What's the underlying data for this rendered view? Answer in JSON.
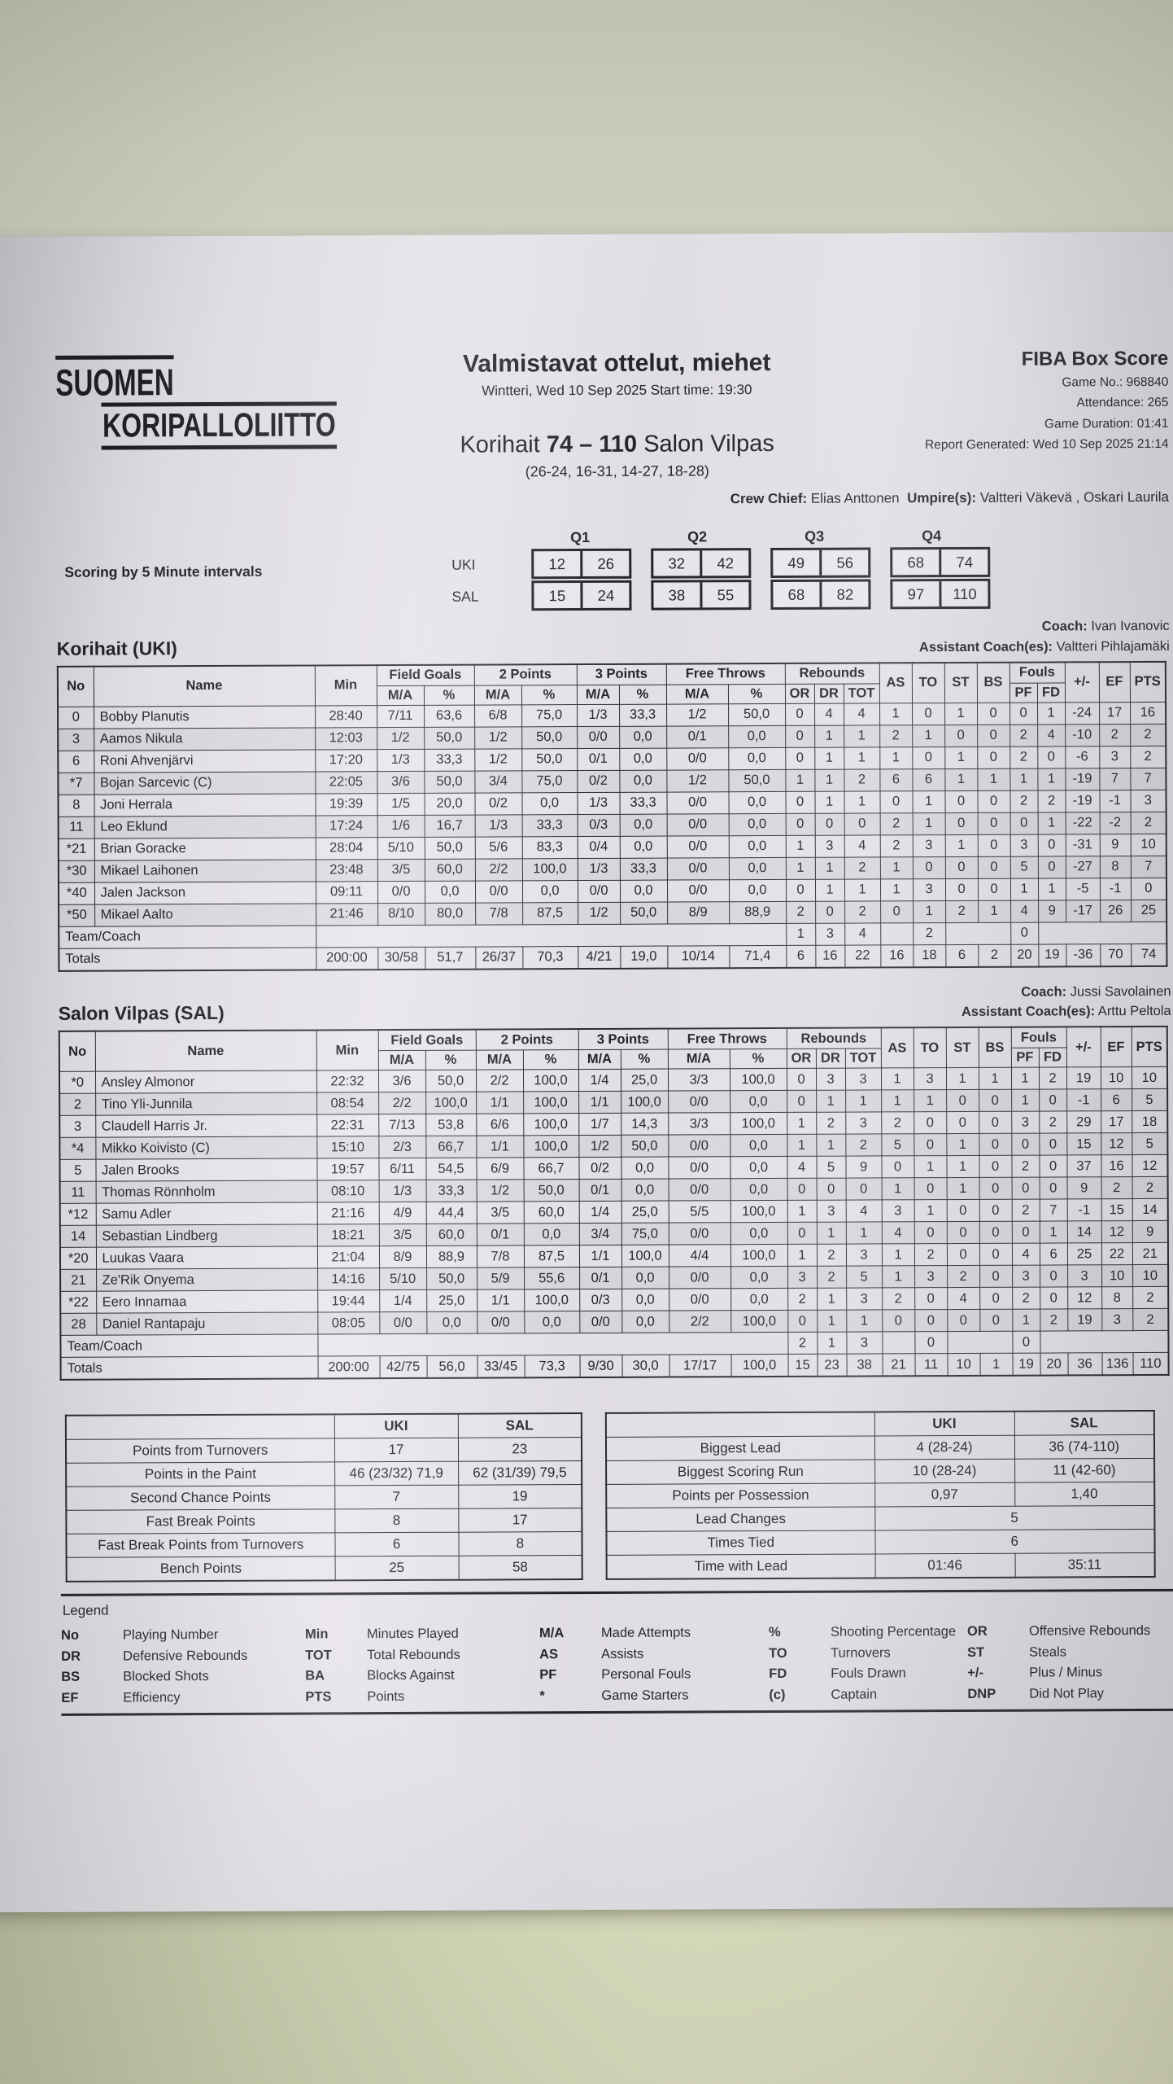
{
  "header": {
    "logo_line1": "SUOMEN",
    "logo_line2": "KORIPALLOLIITTO",
    "title": "Valmistavat ottelut, miehet",
    "subtitle": "Wintteri, Wed 10 Sep 2025 Start time: 19:30",
    "home_team": "Korihait",
    "score": "74 – 110",
    "away_team": "Salon Vilpas",
    "quarter_scores": "(26-24, 16-31, 14-27, 18-28)",
    "report_title": "FIBA Box Score",
    "info_lines": [
      "Game No.: 968840",
      "Attendance: 265",
      "Game Duration: 01:41",
      "Report Generated: Wed 10 Sep 2025 21:14"
    ],
    "crew_chief_label": "Crew Chief:",
    "crew_chief": "Elias Anttonen",
    "umpires_label": "Umpire(s):",
    "umpires": "Valtteri Väkevä , Oskari Laurila"
  },
  "intervals": {
    "label": "Scoring by 5 Minute intervals",
    "quarters": [
      "Q1",
      "Q2",
      "Q3",
      "Q4"
    ],
    "rows": [
      {
        "team": "UKI",
        "cells": [
          [
            "12",
            "26"
          ],
          [
            "32",
            "42"
          ],
          [
            "49",
            "56"
          ],
          [
            "68",
            "74"
          ]
        ]
      },
      {
        "team": "SAL",
        "cells": [
          [
            "15",
            "24"
          ],
          [
            "38",
            "55"
          ],
          [
            "68",
            "82"
          ],
          [
            "97",
            "110"
          ]
        ]
      }
    ]
  },
  "box_header": {
    "no": "No",
    "name": "Name",
    "min": "Min",
    "field_goals": "Field Goals",
    "two_points": "2 Points",
    "three_points": "3 Points",
    "free_throws": "Free Throws",
    "rebounds": "Rebounds",
    "ma": "M/A",
    "pct": "%",
    "or": "OR",
    "dr": "DR",
    "tot": "TOT",
    "as": "AS",
    "to": "TO",
    "st": "ST",
    "bs": "BS",
    "fouls": "Fouls",
    "pf": "PF",
    "fd": "FD",
    "plus_minus": "+/-",
    "ef": "EF",
    "pts": "PTS"
  },
  "teams": [
    {
      "heading": "Korihait (UKI)",
      "slug": "uki",
      "coach_label": "Coach:",
      "coach": "Ivan Ivanovic",
      "assistant_label": "Assistant Coach(es):",
      "assistant": "Valtteri Pihlajamäki",
      "players": [
        [
          "0",
          "Bobby Planutis",
          "28:40",
          "7/11",
          "63,6",
          "6/8",
          "75,0",
          "1/3",
          "33,3",
          "1/2",
          "50,0",
          "0",
          "4",
          "4",
          "1",
          "0",
          "1",
          "0",
          "0",
          "1",
          "-24",
          "17",
          "16"
        ],
        [
          "3",
          "Aamos Nikula",
          "12:03",
          "1/2",
          "50,0",
          "1/2",
          "50,0",
          "0/0",
          "0,0",
          "0/1",
          "0,0",
          "0",
          "1",
          "1",
          "2",
          "1",
          "0",
          "0",
          "2",
          "4",
          "-10",
          "2",
          "2"
        ],
        [
          "6",
          "Roni Ahvenjärvi",
          "17:20",
          "1/3",
          "33,3",
          "1/2",
          "50,0",
          "0/1",
          "0,0",
          "0/0",
          "0,0",
          "0",
          "1",
          "1",
          "1",
          "0",
          "1",
          "0",
          "2",
          "0",
          "-6",
          "3",
          "2"
        ],
        [
          "*7",
          "Bojan Sarcevic (C)",
          "22:05",
          "3/6",
          "50,0",
          "3/4",
          "75,0",
          "0/2",
          "0,0",
          "1/2",
          "50,0",
          "1",
          "1",
          "2",
          "6",
          "6",
          "1",
          "1",
          "1",
          "1",
          "-19",
          "7",
          "7"
        ],
        [
          "8",
          "Joni Herrala",
          "19:39",
          "1/5",
          "20,0",
          "0/2",
          "0,0",
          "1/3",
          "33,3",
          "0/0",
          "0,0",
          "0",
          "1",
          "1",
          "0",
          "1",
          "0",
          "0",
          "2",
          "2",
          "-19",
          "-1",
          "3"
        ],
        [
          "11",
          "Leo Eklund",
          "17:24",
          "1/6",
          "16,7",
          "1/3",
          "33,3",
          "0/3",
          "0,0",
          "0/0",
          "0,0",
          "0",
          "0",
          "0",
          "2",
          "1",
          "0",
          "0",
          "0",
          "1",
          "-22",
          "-2",
          "2"
        ],
        [
          "*21",
          "Brian Goracke",
          "28:04",
          "5/10",
          "50,0",
          "5/6",
          "83,3",
          "0/4",
          "0,0",
          "0/0",
          "0,0",
          "1",
          "3",
          "4",
          "2",
          "3",
          "1",
          "0",
          "3",
          "0",
          "-31",
          "9",
          "10"
        ],
        [
          "*30",
          "Mikael Laihonen",
          "23:48",
          "3/5",
          "60,0",
          "2/2",
          "100,0",
          "1/3",
          "33,3",
          "0/0",
          "0,0",
          "1",
          "1",
          "2",
          "1",
          "0",
          "0",
          "0",
          "5",
          "0",
          "-27",
          "8",
          "7"
        ],
        [
          "*40",
          "Jalen Jackson",
          "09:11",
          "0/0",
          "0,0",
          "0/0",
          "0,0",
          "0/0",
          "0,0",
          "0/0",
          "0,0",
          "0",
          "1",
          "1",
          "1",
          "3",
          "0",
          "0",
          "1",
          "1",
          "-5",
          "-1",
          "0"
        ],
        [
          "*50",
          "Mikael Aalto",
          "21:46",
          "8/10",
          "80,0",
          "7/8",
          "87,5",
          "1/2",
          "50,0",
          "8/9",
          "88,9",
          "2",
          "0",
          "2",
          "0",
          "1",
          "2",
          "1",
          "4",
          "9",
          "-17",
          "26",
          "25"
        ]
      ],
      "team_coach": {
        "label": "Team/Coach",
        "or": "1",
        "dr": "3",
        "tot": "4",
        "to": "2",
        "pf": "0"
      },
      "totals_label": "Totals",
      "totals": [
        "200:00",
        "30/58",
        "51,7",
        "26/37",
        "70,3",
        "4/21",
        "19,0",
        "10/14",
        "71,4",
        "6",
        "16",
        "22",
        "16",
        "18",
        "6",
        "2",
        "20",
        "19",
        "-36",
        "70",
        "74"
      ]
    },
    {
      "heading": "Salon Vilpas (SAL)",
      "slug": "sal",
      "coach_label": "Coach:",
      "coach": "Jussi Savolainen",
      "assistant_label": "Assistant Coach(es):",
      "assistant": "Arttu Peltola",
      "players": [
        [
          "*0",
          "Ansley Almonor",
          "22:32",
          "3/6",
          "50,0",
          "2/2",
          "100,0",
          "1/4",
          "25,0",
          "3/3",
          "100,0",
          "0",
          "3",
          "3",
          "1",
          "3",
          "1",
          "1",
          "1",
          "2",
          "19",
          "10",
          "10"
        ],
        [
          "2",
          "Tino Yli-Junnila",
          "08:54",
          "2/2",
          "100,0",
          "1/1",
          "100,0",
          "1/1",
          "100,0",
          "0/0",
          "0,0",
          "0",
          "1",
          "1",
          "1",
          "1",
          "0",
          "0",
          "1",
          "0",
          "-1",
          "6",
          "5"
        ],
        [
          "3",
          "Claudell Harris Jr.",
          "22:31",
          "7/13",
          "53,8",
          "6/6",
          "100,0",
          "1/7",
          "14,3",
          "3/3",
          "100,0",
          "1",
          "2",
          "3",
          "2",
          "0",
          "0",
          "0",
          "3",
          "2",
          "29",
          "17",
          "18"
        ],
        [
          "*4",
          "Mikko Koivisto (C)",
          "15:10",
          "2/3",
          "66,7",
          "1/1",
          "100,0",
          "1/2",
          "50,0",
          "0/0",
          "0,0",
          "1",
          "1",
          "2",
          "5",
          "0",
          "1",
          "0",
          "0",
          "0",
          "15",
          "12",
          "5"
        ],
        [
          "5",
          "Jalen Brooks",
          "19:57",
          "6/11",
          "54,5",
          "6/9",
          "66,7",
          "0/2",
          "0,0",
          "0/0",
          "0,0",
          "4",
          "5",
          "9",
          "0",
          "1",
          "1",
          "0",
          "2",
          "0",
          "37",
          "16",
          "12"
        ],
        [
          "11",
          "Thomas Rönnholm",
          "08:10",
          "1/3",
          "33,3",
          "1/2",
          "50,0",
          "0/1",
          "0,0",
          "0/0",
          "0,0",
          "0",
          "0",
          "0",
          "1",
          "0",
          "1",
          "0",
          "0",
          "0",
          "9",
          "2",
          "2"
        ],
        [
          "*12",
          "Samu Adler",
          "21:16",
          "4/9",
          "44,4",
          "3/5",
          "60,0",
          "1/4",
          "25,0",
          "5/5",
          "100,0",
          "1",
          "3",
          "4",
          "3",
          "1",
          "0",
          "0",
          "2",
          "7",
          "-1",
          "15",
          "14"
        ],
        [
          "14",
          "Sebastian Lindberg",
          "18:21",
          "3/5",
          "60,0",
          "0/1",
          "0,0",
          "3/4",
          "75,0",
          "0/0",
          "0,0",
          "0",
          "1",
          "1",
          "4",
          "0",
          "0",
          "0",
          "0",
          "1",
          "14",
          "12",
          "9"
        ],
        [
          "*20",
          "Luukas Vaara",
          "21:04",
          "8/9",
          "88,9",
          "7/8",
          "87,5",
          "1/1",
          "100,0",
          "4/4",
          "100,0",
          "1",
          "2",
          "3",
          "1",
          "2",
          "0",
          "0",
          "4",
          "6",
          "25",
          "22",
          "21"
        ],
        [
          "21",
          "Ze'Rik Onyema",
          "14:16",
          "5/10",
          "50,0",
          "5/9",
          "55,6",
          "0/1",
          "0,0",
          "0/0",
          "0,0",
          "3",
          "2",
          "5",
          "1",
          "3",
          "2",
          "0",
          "3",
          "0",
          "3",
          "10",
          "10"
        ],
        [
          "*22",
          "Eero Innamaa",
          "19:44",
          "1/4",
          "25,0",
          "1/1",
          "100,0",
          "0/3",
          "0,0",
          "0/0",
          "0,0",
          "2",
          "1",
          "3",
          "2",
          "0",
          "4",
          "0",
          "2",
          "0",
          "12",
          "8",
          "2"
        ],
        [
          "28",
          "Daniel Rantapaju",
          "08:05",
          "0/0",
          "0,0",
          "0/0",
          "0,0",
          "0/0",
          "0,0",
          "2/2",
          "100,0",
          "0",
          "1",
          "1",
          "0",
          "0",
          "0",
          "0",
          "1",
          "2",
          "19",
          "3",
          "2"
        ]
      ],
      "team_coach": {
        "label": "Team/Coach",
        "or": "2",
        "dr": "1",
        "tot": "3",
        "to": "0",
        "pf": "0"
      },
      "totals_label": "Totals",
      "totals": [
        "200:00",
        "42/75",
        "56,0",
        "33/45",
        "73,3",
        "9/30",
        "30,0",
        "17/17",
        "100,0",
        "15",
        "23",
        "38",
        "21",
        "11",
        "10",
        "1",
        "19",
        "20",
        "36",
        "136",
        "110"
      ]
    }
  ],
  "team_stats": {
    "headers": [
      "UKI",
      "SAL"
    ],
    "rows": [
      {
        "label": "Points from Turnovers",
        "uki": "17",
        "sal": "23"
      },
      {
        "label": "Points in the Paint",
        "uki": "46 (23/32) 71,9",
        "sal": "62 (31/39) 79,5"
      },
      {
        "label": "Second Chance Points",
        "uki": "7",
        "sal": "19"
      },
      {
        "label": "Fast Break Points",
        "uki": "8",
        "sal": "17"
      },
      {
        "label": "Fast Break Points from Turnovers",
        "uki": "6",
        "sal": "8"
      },
      {
        "label": "Bench Points",
        "uki": "25",
        "sal": "58"
      }
    ]
  },
  "game_stats": {
    "headers": [
      "UKI",
      "SAL"
    ],
    "rows": [
      {
        "label": "Biggest Lead",
        "uki": "4 (28-24)",
        "sal": "36 (74-110)"
      },
      {
        "label": "Biggest Scoring Run",
        "uki": "10 (28-24)",
        "sal": "11 (42-60)"
      },
      {
        "label": "Points per Possession",
        "uki": "0,97",
        "sal": "1,40"
      },
      {
        "label": "Lead Changes",
        "merged": "5"
      },
      {
        "label": "Times Tied",
        "merged": "6"
      },
      {
        "label": "Time with Lead",
        "uki": "01:46",
        "sal": "35:11"
      }
    ]
  },
  "legend": {
    "title": "Legend",
    "columns": [
      [
        [
          "No",
          "Playing Number"
        ],
        [
          "DR",
          "Defensive Rebounds"
        ],
        [
          "BS",
          "Blocked Shots"
        ],
        [
          "EF",
          "Efficiency"
        ]
      ],
      [
        [
          "Min",
          "Minutes Played"
        ],
        [
          "TOT",
          "Total Rebounds"
        ],
        [
          "BA",
          "Blocks Against"
        ],
        [
          "PTS",
          "Points"
        ]
      ],
      [
        [
          "M/A",
          "Made Attempts"
        ],
        [
          "AS",
          "Assists"
        ],
        [
          "PF",
          "Personal Fouls"
        ],
        [
          "*",
          "Game Starters"
        ]
      ],
      [
        [
          "%",
          "Shooting Percentage"
        ],
        [
          "TO",
          "Turnovers"
        ],
        [
          "FD",
          "Fouls Drawn"
        ],
        [
          "(c)",
          "Captain"
        ]
      ],
      [
        [
          "OR",
          "Offensive Rebounds"
        ],
        [
          "ST",
          "Steals"
        ],
        [
          "+/-",
          "Plus / Minus"
        ],
        [
          "DNP",
          "Did Not Play"
        ]
      ]
    ]
  }
}
